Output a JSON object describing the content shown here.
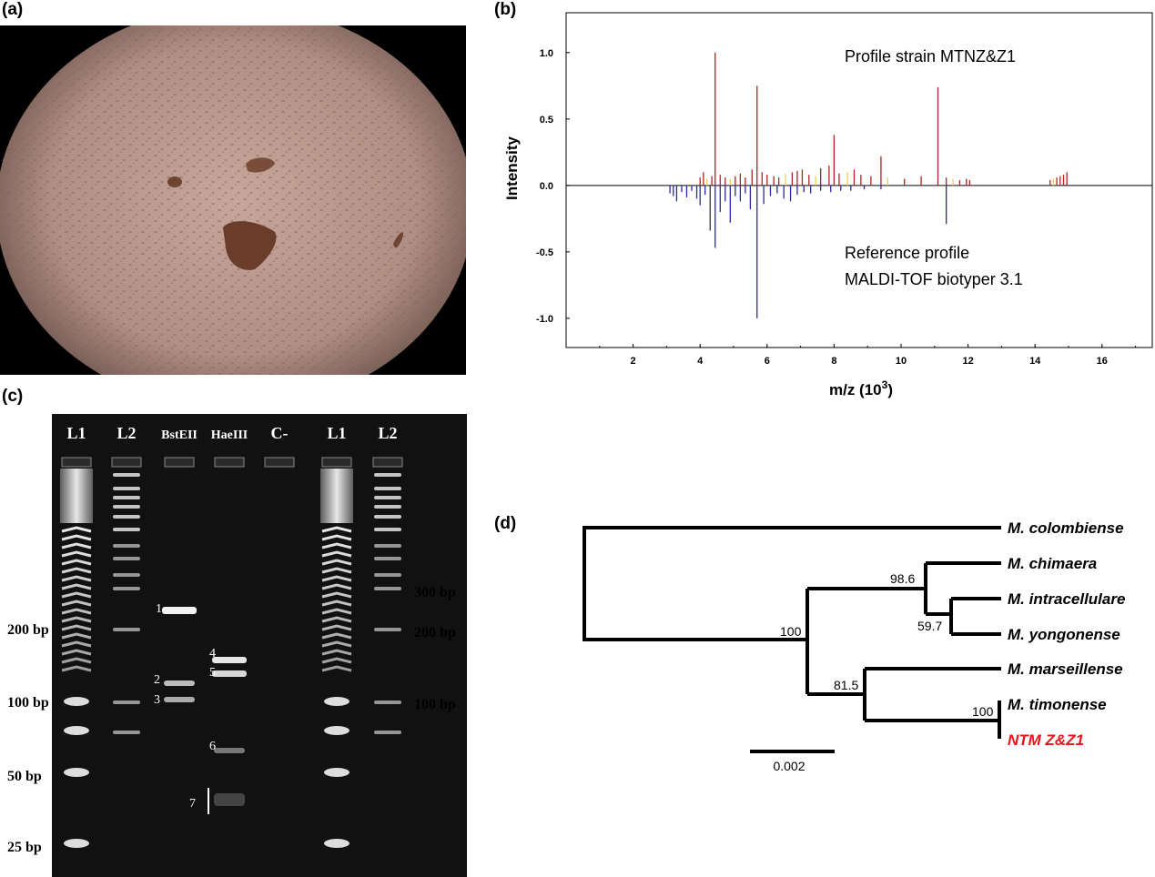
{
  "panels": {
    "a": {
      "label": "(a)"
    },
    "b": {
      "label": "(b)"
    },
    "c": {
      "label": "(c)"
    },
    "d": {
      "label": "(d)"
    }
  },
  "colors": {
    "spectrum_red": "#b22222",
    "spectrum_yellow": "#f0d050",
    "spectrum_blue": "#2a2aa0",
    "tree_highlight": "#e8141a",
    "gel_background": "#111111",
    "micro_background": "#b89489"
  },
  "chart_data": {
    "type": "bar",
    "xlabel": "m/z (10",
    "xlabel_sup": "3",
    "xlabel_end": ")",
    "ylabel": "Intensity",
    "xlim": [
      0,
      17.5
    ],
    "ylim": [
      -1.22,
      1.3
    ],
    "x_ticks": [
      2,
      4,
      6,
      8,
      10,
      12,
      14,
      16
    ],
    "x_tick_labels": [
      "2",
      "4",
      "6",
      "8",
      "10",
      "12",
      "14",
      "16"
    ],
    "y_ticks": [
      1.0,
      0.5,
      0.0,
      -0.5,
      -1.0
    ],
    "y_tick_labels": [
      "1.0",
      "0.5",
      "0.0",
      "-0.5",
      "-1.0"
    ],
    "annotations": {
      "top": "Profile strain MTNZ&Z1",
      "bottom_line1": "Reference profile",
      "bottom_line2": "MALDI-TOF biotyper 3.1"
    },
    "series": [
      {
        "name": "Profile strain MTNZ&Z1",
        "x": [
          4.0,
          4.1,
          4.2,
          4.35,
          4.45,
          4.6,
          4.75,
          4.9,
          5.05,
          5.2,
          5.35,
          5.55,
          5.7,
          5.85,
          6.0,
          6.2,
          6.35,
          6.55,
          6.75,
          6.9,
          7.05,
          7.25,
          7.45,
          7.6,
          7.85,
          8.0,
          8.15,
          8.4,
          8.6,
          8.8,
          9.1,
          9.4,
          9.6,
          10.1,
          10.6,
          11.1,
          11.35,
          11.55,
          11.75,
          11.95,
          12.05,
          14.45,
          14.55,
          14.65,
          14.75,
          14.85,
          14.95
        ],
        "y": [
          0.06,
          0.1,
          0.05,
          0.07,
          1.0,
          0.08,
          0.06,
          0.05,
          0.07,
          0.09,
          0.06,
          0.12,
          0.75,
          0.1,
          0.08,
          0.07,
          0.06,
          0.09,
          0.1,
          0.11,
          0.12,
          0.08,
          0.07,
          0.13,
          0.15,
          0.38,
          0.09,
          0.1,
          0.12,
          0.08,
          0.07,
          0.22,
          0.06,
          0.05,
          0.07,
          0.74,
          0.06,
          0.05,
          0.04,
          0.05,
          0.04,
          0.04,
          0.05,
          0.06,
          0.07,
          0.08,
          0.1
        ]
      },
      {
        "name": "Reference profile MALDI-TOF biotyper 3.1",
        "x": [
          3.1,
          3.2,
          3.3,
          3.45,
          3.6,
          3.75,
          3.9,
          4.0,
          4.15,
          4.3,
          4.45,
          4.6,
          4.75,
          4.9,
          5.05,
          5.2,
          5.35,
          5.5,
          5.7,
          5.9,
          6.1,
          6.3,
          6.5,
          6.7,
          6.9,
          7.1,
          7.3,
          7.6,
          7.9,
          8.2,
          8.5,
          8.9,
          9.4,
          11.35
        ],
        "y": [
          -0.06,
          -0.08,
          -0.12,
          -0.05,
          -0.09,
          -0.04,
          -0.1,
          -0.15,
          -0.07,
          -0.34,
          -0.47,
          -0.2,
          -0.12,
          -0.28,
          -0.08,
          -0.12,
          -0.06,
          -0.18,
          -1.0,
          -0.14,
          -0.08,
          -0.06,
          -0.1,
          -0.12,
          -0.07,
          -0.05,
          -0.06,
          -0.04,
          -0.05,
          -0.04,
          -0.04,
          -0.03,
          -0.03,
          -0.29
        ]
      }
    ]
  },
  "gel": {
    "lanes": [
      "L1",
      "L2",
      "BstEII",
      "HaeIII",
      "C-",
      "L1",
      "L2"
    ],
    "left_markers": [
      "200 bp",
      "100 bp",
      "50 bp",
      "25 bp"
    ],
    "right_markers": [
      "300 bp",
      "200 bp",
      "100 bp"
    ],
    "band_labels": [
      "1",
      "2",
      "3",
      "4",
      "5",
      "6",
      "7"
    ]
  },
  "tree": {
    "taxa": [
      "M. colombiense",
      "M. chimaera",
      "M. intracellulare",
      "M. yongonense",
      "M. marseillense",
      "M. timonense",
      "NTM Z&Z1"
    ],
    "bootstraps": [
      "98.6",
      "59.7",
      "100",
      "81.5",
      "100"
    ],
    "scale_label": "0.002"
  }
}
